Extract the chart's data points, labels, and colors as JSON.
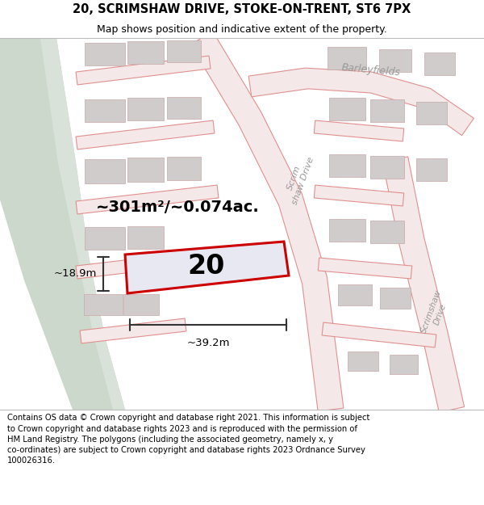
{
  "title_line1": "20, SCRIMSHAW DRIVE, STOKE-ON-TRENT, ST6 7PX",
  "title_line2": "Map shows position and indicative extent of the property.",
  "footer_text": "Contains OS data © Crown copyright and database right 2021. This information is subject to Crown copyright and database rights 2023 and is reproduced with the permission of HM Land Registry. The polygons (including the associated geometry, namely x, y co-ordinates) are subject to Crown copyright and database rights 2023 Ordnance Survey 100026316.",
  "area_label": "~301m²/~0.074ac.",
  "property_number": "20",
  "width_label": "~39.2m",
  "height_label": "~18.9m",
  "map_bg": "#f0eeee",
  "green_color": "#ccd8cc",
  "road_edge": "#e09090",
  "road_fill": "#f5e8e8",
  "building_fill": "#d0cccc",
  "building_edge": "#c8a8a8",
  "property_fill": "#e8e8f2",
  "property_edge": "#cc0000",
  "dim_color": "#333333",
  "label_color": "#999999",
  "title_fontsize": 10.5,
  "subtitle_fontsize": 9,
  "footer_fontsize": 7.2,
  "area_fontsize": 14,
  "number_fontsize": 24,
  "dim_fontsize": 9.5
}
